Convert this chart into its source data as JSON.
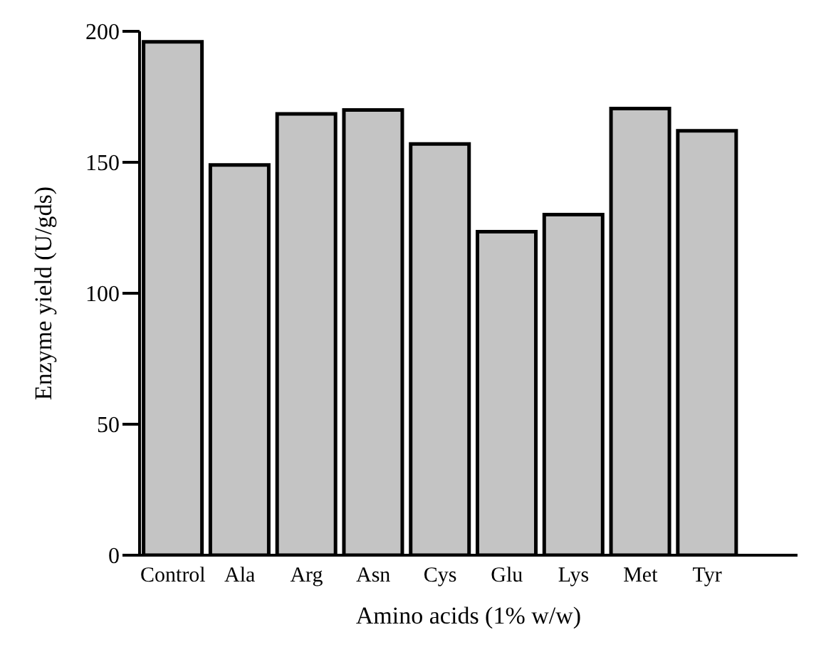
{
  "chart_data": {
    "type": "bar",
    "xlabel": "Amino acids (1% w/w)",
    "ylabel": "Enzyme yield (U/gds)",
    "categories": [
      "Control",
      "Ala",
      "Arg",
      "Asn",
      "Cys",
      "Glu",
      "Lys",
      "Met",
      "Tyr"
    ],
    "values": [
      196,
      149,
      168.5,
      170,
      157,
      123.5,
      130,
      170.5,
      162
    ],
    "color": "#c4c4c4",
    "ylim": [
      0,
      200
    ],
    "yticks": [
      0,
      50,
      100,
      150,
      200
    ],
    "grid": false,
    "legend": false
  }
}
